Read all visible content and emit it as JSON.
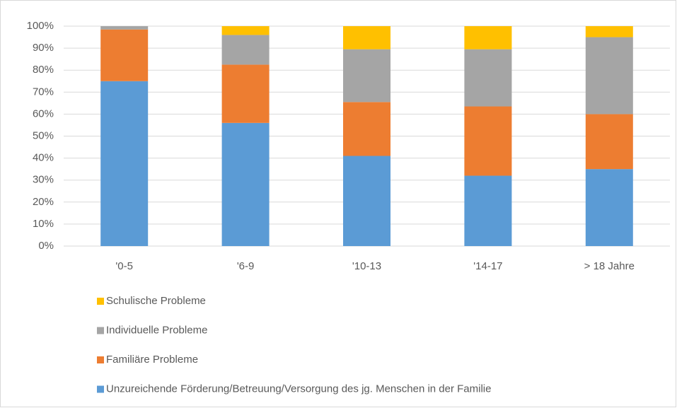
{
  "chart_data": {
    "type": "stacked_bar",
    "categories": [
      "'0-5",
      "'6-9",
      "'10-13",
      "'14-17",
      "> 18 Jahre"
    ],
    "series": [
      {
        "name": "Unzureichende Förderung/Betreuung/Versorgung des jg. Menschen in der Familie",
        "color": "#5b9bd5",
        "values": [
          75,
          56,
          41,
          32,
          35
        ]
      },
      {
        "name": "Familiäre Probleme",
        "color": "#ed7d31",
        "values": [
          23.5,
          26.5,
          24.5,
          31.5,
          25
        ]
      },
      {
        "name": "Individuelle Probleme",
        "color": "#a5a5a5",
        "values": [
          1.5,
          13.5,
          24,
          26,
          35
        ]
      },
      {
        "name": "Schulische Probleme",
        "color": "#ffc000",
        "values": [
          0,
          4,
          10.5,
          10.5,
          5
        ]
      }
    ],
    "ylim": [
      0,
      100
    ],
    "yticks": [
      {
        "value": 0,
        "label": "0%"
      },
      {
        "value": 10,
        "label": "10%"
      },
      {
        "value": 20,
        "label": "20%"
      },
      {
        "value": 30,
        "label": "30%"
      },
      {
        "value": 40,
        "label": "40%"
      },
      {
        "value": 50,
        "label": "50%"
      },
      {
        "value": 60,
        "label": "60%"
      },
      {
        "value": 70,
        "label": "70%"
      },
      {
        "value": 80,
        "label": "80%"
      },
      {
        "value": 90,
        "label": "90%"
      },
      {
        "value": 100,
        "label": "100%"
      }
    ],
    "grid": true,
    "legend": "bottom"
  }
}
